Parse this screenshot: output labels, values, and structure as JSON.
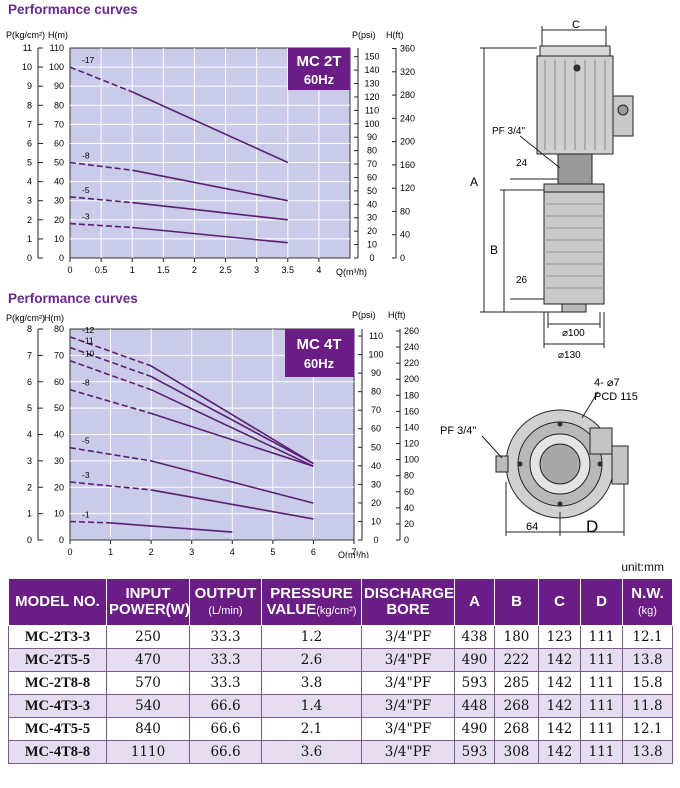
{
  "colors": {
    "accent": "#6b1d86",
    "plot_bg": "#c9cbe8",
    "curve": "#5a1f73",
    "badge_bg": "#6b1d86"
  },
  "section1": {
    "title": "Performance curves",
    "badge_model": "MC 2T",
    "badge_freq": "60Hz"
  },
  "section2": {
    "title": "Performance curves",
    "badge_model": "MC 4T",
    "badge_freq": "60Hz"
  },
  "chart_data": [
    {
      "type": "line",
      "title": "Performance curves",
      "badge": "MC 2T 60Hz",
      "xlabel": "Q(m³/h)",
      "left_axes": [
        {
          "label": "P(kg/cm²)",
          "ticks": [
            "0",
            "1",
            "2",
            "3",
            "4",
            "5",
            "6",
            "7",
            "8",
            "9",
            "10",
            "11"
          ]
        },
        {
          "label": "H(m)",
          "ticks": [
            "0",
            "10",
            "20",
            "30",
            "40",
            "50",
            "60",
            "70",
            "80",
            "90",
            "100",
            "110"
          ]
        }
      ],
      "right_axes": [
        {
          "label": "P(psi)",
          "ticks": [
            "0",
            "10",
            "20",
            "30",
            "40",
            "50",
            "60",
            "70",
            "80",
            "90",
            "100",
            "110",
            "120",
            "130",
            "140",
            "150"
          ]
        },
        {
          "label": "H(ft)",
          "ticks": [
            "0",
            "40",
            "80",
            "120",
            "160",
            "200",
            "240",
            "280",
            "320",
            "360"
          ]
        }
      ],
      "x_ticks": [
        "0",
        "0.5",
        "1",
        "1.5",
        "2",
        "2.5",
        "3",
        "3.5",
        "4"
      ],
      "xlim": [
        0,
        4.5
      ],
      "ylim": [
        0,
        110
      ],
      "grid": true,
      "series": [
        {
          "name": "-17",
          "x": [
            0,
            1,
            3.5
          ],
          "y": [
            100,
            87,
            50
          ],
          "dashed_until": 1
        },
        {
          "name": "-8",
          "x": [
            0,
            1,
            3.5
          ],
          "y": [
            50,
            46,
            30
          ],
          "dashed_until": 1
        },
        {
          "name": "-5",
          "x": [
            0,
            1,
            3.5
          ],
          "y": [
            32,
            29,
            20
          ],
          "dashed_until": 1
        },
        {
          "name": "-3",
          "x": [
            0,
            1,
            3.5
          ],
          "y": [
            18,
            16,
            8
          ],
          "dashed_until": 1
        }
      ]
    },
    {
      "type": "line",
      "title": "Performance curves",
      "badge": "MC 4T 60Hz",
      "xlabel": "Q(m³/h)",
      "left_axes": [
        {
          "label": "P(kg/cm²)",
          "ticks": [
            "0",
            "1",
            "2",
            "3",
            "4",
            "5",
            "6",
            "7",
            "8"
          ]
        },
        {
          "label": "H(m)",
          "ticks": [
            "0",
            "10",
            "20",
            "30",
            "40",
            "50",
            "60",
            "70",
            "80"
          ]
        }
      ],
      "right_axes": [
        {
          "label": "P(psi)",
          "ticks": [
            "0",
            "10",
            "20",
            "30",
            "40",
            "50",
            "60",
            "70",
            "80",
            "90",
            "100",
            "110"
          ]
        },
        {
          "label": "H(ft)",
          "ticks": [
            "0",
            "20",
            "40",
            "60",
            "80",
            "100",
            "120",
            "140",
            "160",
            "180",
            "200",
            "220",
            "240",
            "260"
          ]
        }
      ],
      "x_ticks": [
        "0",
        "1",
        "2",
        "3",
        "4",
        "5",
        "6",
        "7"
      ],
      "xlim": [
        0,
        7
      ],
      "ylim": [
        0,
        80
      ],
      "grid": true,
      "series": [
        {
          "name": "-12",
          "x": [
            0,
            2,
            6
          ],
          "y": [
            77,
            66,
            29
          ],
          "dashed_until": 2
        },
        {
          "name": "-11",
          "x": [
            0,
            2,
            6
          ],
          "y": [
            73,
            62,
            29
          ],
          "dashed_until": 2
        },
        {
          "name": "-10",
          "x": [
            0,
            2,
            6
          ],
          "y": [
            68,
            57,
            28
          ],
          "dashed_until": 2
        },
        {
          "name": "-8",
          "x": [
            0,
            2,
            6
          ],
          "y": [
            57,
            48,
            28
          ],
          "dashed_until": 2
        },
        {
          "name": "-5",
          "x": [
            0,
            2,
            6
          ],
          "y": [
            35,
            30,
            14
          ],
          "dashed_until": 2
        },
        {
          "name": "-3",
          "x": [
            0,
            2,
            6
          ],
          "y": [
            22,
            19,
            8
          ],
          "dashed_until": 2
        },
        {
          "name": "-1",
          "x": [
            0,
            1,
            4
          ],
          "y": [
            7,
            6.5,
            3
          ],
          "dashed_until": 1
        }
      ]
    }
  ],
  "drawing_top": {
    "labels": {
      "c": "C",
      "a": "A",
      "b": "B",
      "pf": "PF 3/4\"",
      "d24": "24",
      "d26": "26",
      "d100": "⌀100",
      "d130": "⌀130"
    }
  },
  "drawing_bottom": {
    "labels": {
      "holes": "4- ⌀7",
      "pcd": "PCD 115",
      "pf": "PF 3/4\"",
      "d64": "64",
      "d": "D"
    }
  },
  "unit_note": "unit:mm",
  "table": {
    "headers": [
      {
        "main": "MODEL NO.",
        "sub": ""
      },
      {
        "main": "INPUT",
        "main2": "POWER(W)",
        "sub": ""
      },
      {
        "main": "OUTPUT",
        "sub": "(L/min)"
      },
      {
        "main": "PRESSURE",
        "main2": "VALUE",
        "sub": "(kg/cm²)"
      },
      {
        "main": "DISCHARGE",
        "main2": "BORE",
        "sub": ""
      },
      {
        "main": "A",
        "sub": ""
      },
      {
        "main": "B",
        "sub": ""
      },
      {
        "main": "C",
        "sub": ""
      },
      {
        "main": "D",
        "sub": ""
      },
      {
        "main": "N.W.",
        "sub": "(kg)"
      }
    ],
    "rows": [
      [
        "MC-2T3-3",
        "250",
        "33.3",
        "1.2",
        "3/4\"PF",
        "438",
        "180",
        "123",
        "111",
        "12.1"
      ],
      [
        "MC-2T5-5",
        "470",
        "33.3",
        "2.6",
        "3/4\"PF",
        "490",
        "222",
        "142",
        "111",
        "13.8"
      ],
      [
        "MC-2T8-8",
        "570",
        "33.3",
        "3.8",
        "3/4\"PF",
        "593",
        "285",
        "142",
        "111",
        "15.8"
      ],
      [
        "MC-4T3-3",
        "540",
        "66.6",
        "1.4",
        "3/4\"PF",
        "448",
        "268",
        "142",
        "111",
        "11.8"
      ],
      [
        "MC-4T5-5",
        "840",
        "66.6",
        "2.1",
        "3/4\"PF",
        "490",
        "268",
        "142",
        "111",
        "12.1"
      ],
      [
        "MC-4T8-8",
        "1110",
        "66.6",
        "3.6",
        "3/4\"PF",
        "593",
        "308",
        "142",
        "111",
        "13.8"
      ]
    ]
  }
}
